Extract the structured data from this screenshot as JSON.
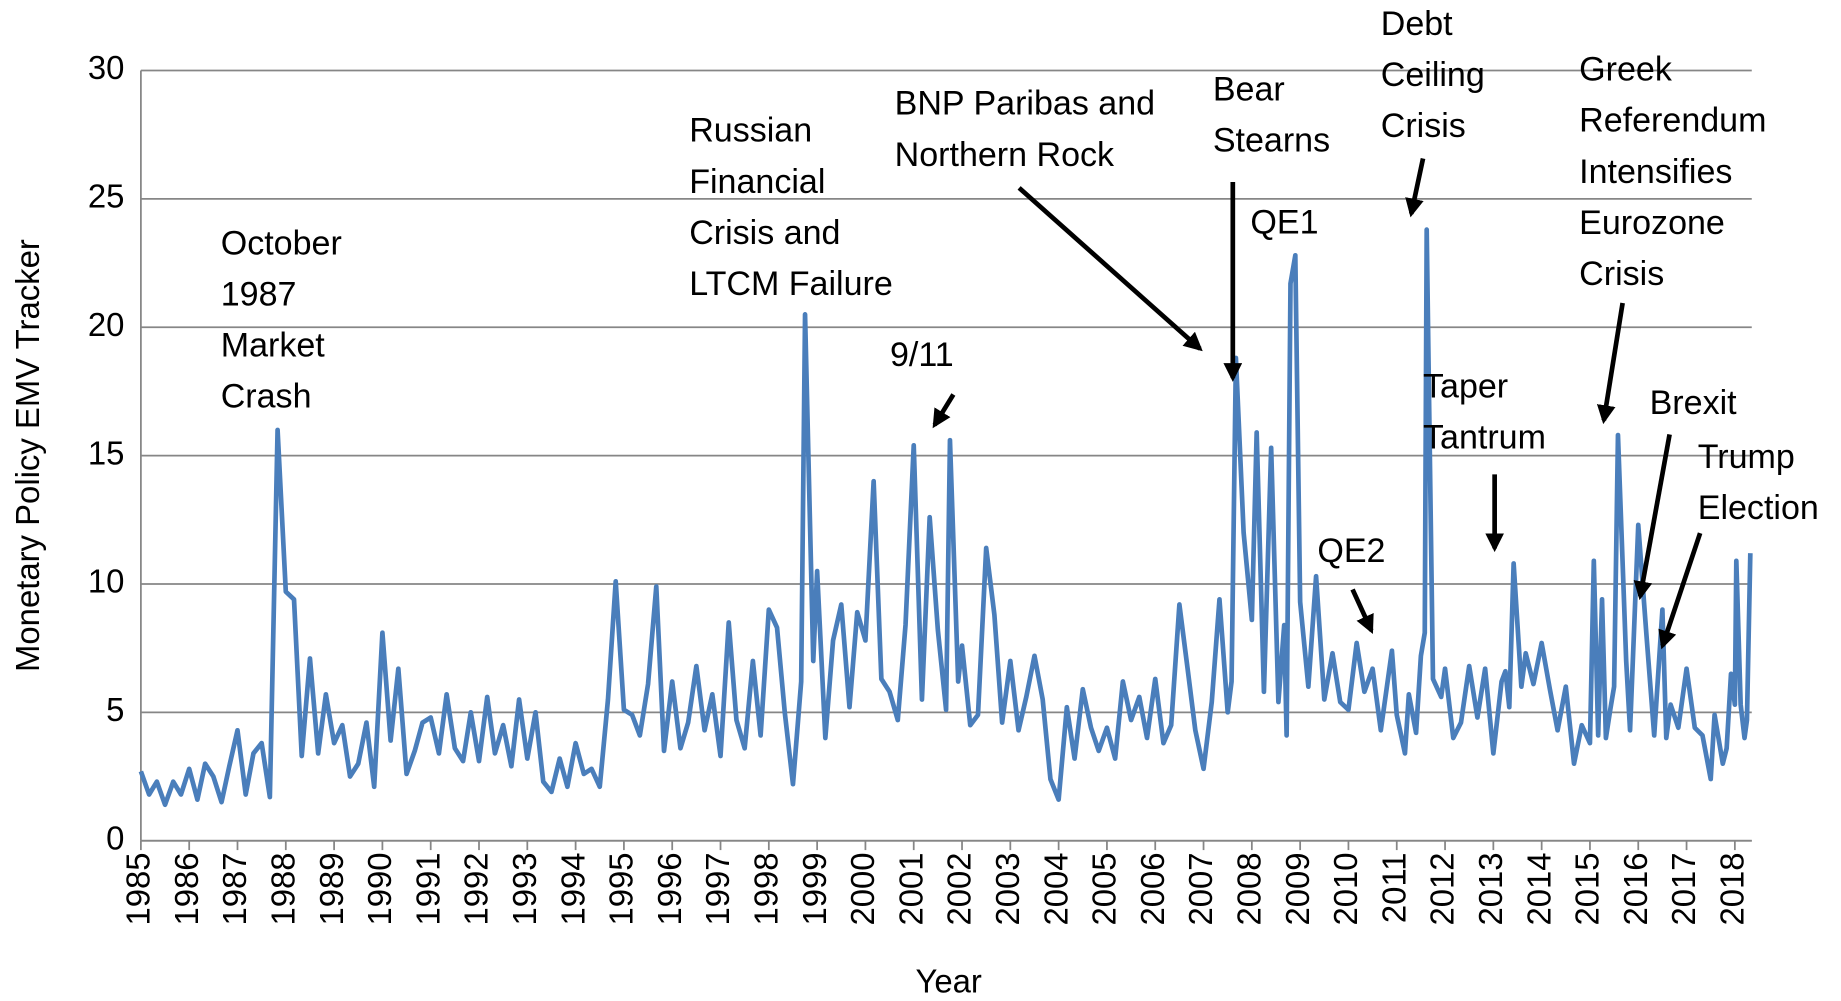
{
  "chart_data": {
    "type": "line",
    "x_label": "Year",
    "y_label": "Monetary Policy EMV Tracker",
    "xlim": [
      1985,
      2018.35
    ],
    "xticks": [
      1985,
      1986,
      1987,
      1988,
      1989,
      1990,
      1991,
      1992,
      1993,
      1994,
      1995,
      1996,
      1997,
      1998,
      1999,
      2000,
      2001,
      2002,
      2003,
      2004,
      2005,
      2006,
      2007,
      2008,
      2009,
      2010,
      2011,
      2012,
      2013,
      2014,
      2015,
      2016,
      2017,
      2018
    ],
    "ylim": [
      0,
      30
    ],
    "yticks": [
      0,
      5,
      10,
      15,
      20,
      25,
      30
    ],
    "grid": true,
    "series": [
      {
        "color": "#4a7ebb",
        "x": [
          1985,
          1985.17,
          1985.33,
          1985.5,
          1985.67,
          1985.83,
          1986,
          1986.17,
          1986.33,
          1986.5,
          1986.67,
          1986.83,
          1987,
          1987.17,
          1987.33,
          1987.5,
          1987.67,
          1987.83,
          1988,
          1988.17,
          1988.33,
          1988.5,
          1988.67,
          1988.83,
          1989,
          1989.17,
          1989.33,
          1989.5,
          1989.67,
          1989.83,
          1990,
          1990.17,
          1990.33,
          1990.5,
          1990.67,
          1990.83,
          1991,
          1991.17,
          1991.33,
          1991.5,
          1991.67,
          1991.83,
          1992,
          1992.17,
          1992.33,
          1992.5,
          1992.67,
          1992.83,
          1993,
          1993.17,
          1993.33,
          1993.5,
          1993.67,
          1993.83,
          1994,
          1994.17,
          1994.33,
          1994.5,
          1994.67,
          1994.83,
          1995,
          1995.17,
          1995.33,
          1995.5,
          1995.67,
          1995.83,
          1996,
          1996.17,
          1996.33,
          1996.5,
          1996.67,
          1996.83,
          1997,
          1997.17,
          1997.33,
          1997.5,
          1997.67,
          1997.83,
          1998,
          1998.17,
          1998.33,
          1998.5,
          1998.67,
          1998.75,
          1998.92,
          1999,
          1999.17,
          1999.33,
          1999.5,
          1999.67,
          1999.83,
          2000,
          2000.17,
          2000.33,
          2000.5,
          2000.67,
          2000.83,
          2001,
          2001.17,
          2001.33,
          2001.5,
          2001.67,
          2001.75,
          2001.92,
          2002,
          2002.17,
          2002.33,
          2002.5,
          2002.67,
          2002.83,
          2003,
          2003.17,
          2003.33,
          2003.5,
          2003.67,
          2003.83,
          2004,
          2004.17,
          2004.33,
          2004.5,
          2004.67,
          2004.83,
          2005,
          2005.17,
          2005.33,
          2005.5,
          2005.67,
          2005.83,
          2006,
          2006.17,
          2006.33,
          2006.5,
          2006.67,
          2006.83,
          2007,
          2007.17,
          2007.33,
          2007.5,
          2007.58,
          2007.67,
          2007.83,
          2008,
          2008.1,
          2008.25,
          2008.4,
          2008.55,
          2008.67,
          2008.72,
          2008.8,
          2008.9,
          2009,
          2009.17,
          2009.33,
          2009.5,
          2009.67,
          2009.83,
          2010,
          2010.17,
          2010.33,
          2010.5,
          2010.67,
          2010.9,
          2011,
          2011.17,
          2011.25,
          2011.4,
          2011.5,
          2011.58,
          2011.62,
          2011.75,
          2011.92,
          2012,
          2012.17,
          2012.33,
          2012.5,
          2012.67,
          2012.83,
          2013,
          2013.17,
          2013.25,
          2013.33,
          2013.42,
          2013.58,
          2013.67,
          2013.83,
          2014,
          2014.17,
          2014.33,
          2014.5,
          2014.67,
          2014.83,
          2015,
          2015.08,
          2015.17,
          2015.25,
          2015.33,
          2015.42,
          2015.5,
          2015.58,
          2015.75,
          2015.83,
          2016,
          2016.17,
          2016.33,
          2016.5,
          2016.58,
          2016.67,
          2016.83,
          2017,
          2017.17,
          2017.33,
          2017.5,
          2017.58,
          2017.75,
          2017.83,
          2017.92,
          2018,
          2018.03,
          2018.12,
          2018.2,
          2018.25,
          2018.32
        ],
        "values": [
          2.7,
          1.8,
          2.3,
          1.4,
          2.3,
          1.8,
          2.8,
          1.6,
          3.0,
          2.5,
          1.5,
          2.9,
          4.3,
          1.8,
          3.4,
          3.8,
          1.7,
          16.0,
          9.7,
          9.4,
          3.3,
          7.1,
          3.4,
          5.7,
          3.8,
          4.5,
          2.5,
          3.0,
          4.6,
          2.1,
          8.1,
          3.9,
          6.7,
          2.6,
          3.5,
          4.6,
          4.8,
          3.4,
          5.7,
          3.6,
          3.1,
          5.0,
          3.1,
          5.6,
          3.4,
          4.5,
          2.9,
          5.5,
          3.2,
          5.0,
          2.3,
          1.9,
          3.2,
          2.1,
          3.8,
          2.6,
          2.8,
          2.1,
          5.5,
          10.1,
          5.1,
          4.9,
          4.1,
          6.1,
          9.9,
          3.5,
          6.2,
          3.6,
          4.6,
          6.8,
          4.3,
          5.7,
          3.3,
          8.5,
          4.7,
          3.6,
          7.0,
          4.1,
          9.0,
          8.3,
          5.0,
          2.2,
          6.2,
          20.5,
          7.0,
          10.5,
          4.0,
          7.8,
          9.2,
          5.2,
          8.9,
          7.8,
          14.0,
          6.3,
          5.8,
          4.7,
          8.4,
          15.4,
          5.5,
          12.6,
          8.2,
          5.1,
          15.6,
          6.2,
          7.6,
          4.5,
          4.9,
          11.4,
          8.8,
          4.6,
          7.0,
          4.3,
          5.6,
          7.2,
          5.5,
          2.4,
          1.6,
          5.2,
          3.2,
          5.9,
          4.4,
          3.5,
          4.4,
          3.2,
          6.2,
          4.7,
          5.6,
          4.0,
          6.3,
          3.8,
          4.5,
          9.2,
          6.7,
          4.3,
          2.8,
          5.4,
          9.4,
          5.0,
          6.2,
          18.8,
          12.0,
          8.6,
          15.9,
          5.8,
          15.3,
          5.4,
          8.4,
          4.1,
          21.7,
          22.8,
          9.3,
          6.0,
          10.3,
          5.5,
          7.3,
          5.4,
          5.1,
          7.7,
          5.8,
          6.7,
          4.3,
          7.4,
          4.9,
          3.4,
          5.7,
          4.2,
          7.2,
          8.1,
          23.8,
          6.3,
          5.6,
          6.7,
          4.0,
          4.6,
          6.8,
          4.8,
          6.7,
          3.4,
          6.2,
          6.6,
          5.2,
          10.8,
          6.0,
          7.3,
          6.1,
          7.7,
          5.9,
          4.3,
          6.0,
          3.0,
          4.5,
          3.8,
          10.9,
          4.1,
          9.4,
          4.0,
          5.1,
          6.0,
          15.8,
          7.0,
          4.3,
          12.3,
          8.0,
          4.1,
          9.0,
          4.0,
          5.3,
          4.4,
          6.7,
          4.4,
          4.1,
          2.4,
          4.9,
          3.0,
          3.6,
          6.5,
          5.3,
          10.9,
          5.3,
          4.0,
          4.7,
          11.2
        ]
      }
    ],
    "annotations": [
      {
        "lines": [
          "October",
          "1987",
          "Market",
          "Crash"
        ]
      },
      {
        "lines": [
          "Russian",
          "Financial",
          "Crisis and",
          "LTCM Failure"
        ]
      },
      {
        "lines": [
          "9/11"
        ]
      },
      {
        "lines": [
          "BNP Paribas and",
          "Northern Rock"
        ]
      },
      {
        "lines": [
          "Bear",
          "Stearns"
        ]
      },
      {
        "lines": [
          "QE1"
        ]
      },
      {
        "lines": [
          "Debt",
          "Ceiling",
          "Crisis"
        ]
      },
      {
        "lines": [
          "QE2"
        ]
      },
      {
        "lines": [
          "Taper",
          "Tantrum"
        ]
      },
      {
        "lines": [
          "Greek",
          "Referendum",
          "Intensifies",
          "Eurozone",
          "Crisis"
        ]
      },
      {
        "lines": [
          "Brexit"
        ]
      },
      {
        "lines": [
          "Trump",
          "Election"
        ]
      }
    ]
  }
}
